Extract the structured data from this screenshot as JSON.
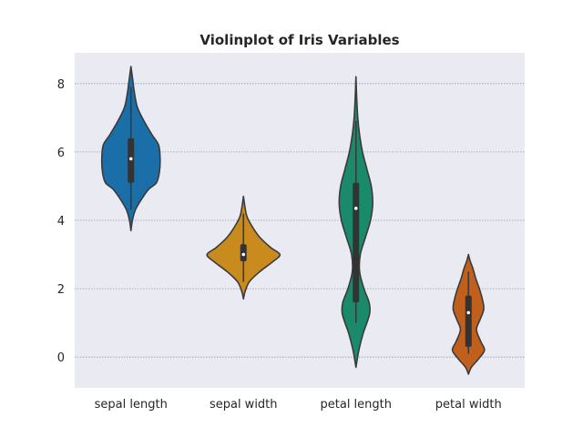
{
  "chart_data": {
    "type": "violin",
    "title": "Violinplot of Iris Variables",
    "xlabel": "",
    "ylabel": "",
    "ylim": [
      -0.9,
      8.9
    ],
    "yticks": [
      0,
      2,
      4,
      6,
      8
    ],
    "grid": "horizontal-dotted",
    "background": "#eaeaf2",
    "categories": [
      "sepal length",
      "sepal width",
      "petal length",
      "petal width"
    ],
    "colors": [
      "#1a6fa8",
      "#c98a1e",
      "#1b8a6a",
      "#c0601c"
    ],
    "violins": [
      {
        "category": "sepal length",
        "min_extent": 3.7,
        "max_extent": 8.5,
        "median": 5.8,
        "q1": 5.1,
        "q3": 6.4,
        "whisker_low": 4.3,
        "whisker_high": 7.9,
        "profile": [
          [
            3.7,
            0.0
          ],
          [
            4.0,
            0.04
          ],
          [
            4.3,
            0.12
          ],
          [
            4.6,
            0.28
          ],
          [
            4.9,
            0.48
          ],
          [
            5.1,
            0.7
          ],
          [
            5.4,
            0.78
          ],
          [
            5.8,
            0.8
          ],
          [
            6.2,
            0.76
          ],
          [
            6.5,
            0.58
          ],
          [
            6.9,
            0.36
          ],
          [
            7.3,
            0.18
          ],
          [
            7.7,
            0.1
          ],
          [
            8.1,
            0.05
          ],
          [
            8.5,
            0.0
          ]
        ]
      },
      {
        "category": "sepal width",
        "min_extent": 1.7,
        "max_extent": 4.7,
        "median": 3.0,
        "q1": 2.8,
        "q3": 3.3,
        "whisker_low": 2.2,
        "whisker_high": 4.2,
        "profile": [
          [
            1.7,
            0.0
          ],
          [
            1.9,
            0.04
          ],
          [
            2.2,
            0.16
          ],
          [
            2.5,
            0.45
          ],
          [
            2.8,
            0.82
          ],
          [
            3.0,
            1.0
          ],
          [
            3.2,
            0.75
          ],
          [
            3.5,
            0.45
          ],
          [
            3.8,
            0.25
          ],
          [
            4.1,
            0.1
          ],
          [
            4.4,
            0.04
          ],
          [
            4.7,
            0.0
          ]
        ]
      },
      {
        "category": "petal length",
        "min_extent": -0.3,
        "max_extent": 8.2,
        "median": 4.35,
        "q1": 1.6,
        "q3": 5.1,
        "whisker_low": 1.0,
        "whisker_high": 6.9,
        "profile": [
          [
            -0.3,
            0.0
          ],
          [
            0.2,
            0.08
          ],
          [
            0.7,
            0.2
          ],
          [
            1.0,
            0.3
          ],
          [
            1.3,
            0.38
          ],
          [
            1.6,
            0.36
          ],
          [
            2.0,
            0.22
          ],
          [
            2.5,
            0.1
          ],
          [
            3.0,
            0.12
          ],
          [
            3.5,
            0.26
          ],
          [
            4.0,
            0.4
          ],
          [
            4.5,
            0.46
          ],
          [
            5.0,
            0.42
          ],
          [
            5.5,
            0.3
          ],
          [
            6.0,
            0.18
          ],
          [
            6.5,
            0.1
          ],
          [
            7.0,
            0.05
          ],
          [
            7.6,
            0.02
          ],
          [
            8.2,
            0.0
          ]
        ]
      },
      {
        "category": "petal width",
        "min_extent": -0.5,
        "max_extent": 3.0,
        "median": 1.3,
        "q1": 0.3,
        "q3": 1.8,
        "whisker_low": 0.1,
        "whisker_high": 2.5,
        "profile": [
          [
            -0.5,
            0.0
          ],
          [
            -0.3,
            0.08
          ],
          [
            -0.05,
            0.28
          ],
          [
            0.2,
            0.44
          ],
          [
            0.45,
            0.34
          ],
          [
            0.8,
            0.22
          ],
          [
            1.1,
            0.32
          ],
          [
            1.4,
            0.42
          ],
          [
            1.7,
            0.38
          ],
          [
            2.0,
            0.3
          ],
          [
            2.3,
            0.2
          ],
          [
            2.6,
            0.12
          ],
          [
            2.8,
            0.05
          ],
          [
            3.0,
            0.0
          ]
        ]
      }
    ]
  }
}
